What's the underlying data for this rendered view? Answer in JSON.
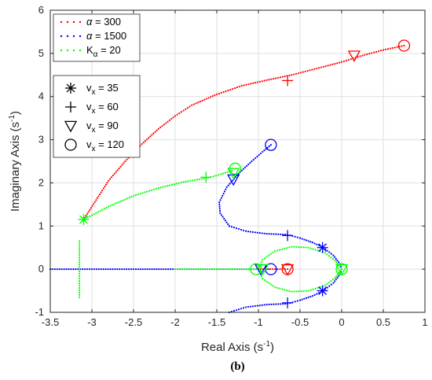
{
  "chart_data": {
    "type": "scatter",
    "xlabel": "Real Axis (s",
    "ylabel": "Imaginary Axis (s",
    "unit_sup": "-1",
    "unit_close": ")",
    "xlim": [
      -3.5,
      1
    ],
    "ylim": [
      -1,
      6
    ],
    "x_ticks": [
      "-3.5",
      "-3",
      "-2.5",
      "-2",
      "-1.5",
      "-1",
      "-0.5",
      "0",
      "0.5",
      "1"
    ],
    "y_ticks": [
      "-1",
      "0",
      "1",
      "2",
      "3",
      "4",
      "5",
      "6"
    ],
    "grid": true,
    "caption": "(b)",
    "colors": {
      "red": "#ff0000",
      "blue": "#0000ff",
      "green": "#00ff00",
      "axis": "#262626",
      "grid": "#dfdfdf"
    },
    "legend_params": [
      {
        "prefix": "α",
        "value": " = 300",
        "color": "#ff0000"
      },
      {
        "prefix": "α",
        "value": " = 1500",
        "color": "#0000ff"
      },
      {
        "prefix": "K",
        "sub": "α",
        "value": " = 20",
        "color": "#00ff00"
      }
    ],
    "legend_markers": [
      {
        "prefix": "v",
        "sub": "x",
        "value": " = 35",
        "marker": "star"
      },
      {
        "prefix": "v",
        "sub": "x",
        "value": " = 60",
        "marker": "plus"
      },
      {
        "prefix": "v",
        "sub": "x",
        "value": " = 90",
        "marker": "triangle"
      },
      {
        "prefix": "v",
        "sub": "x",
        "value": " = 120",
        "marker": "circle"
      }
    ],
    "series": [
      {
        "color": "red",
        "branch": "upper",
        "points": [
          [
            -3.1,
            1.15
          ],
          [
            -2.95,
            1.6
          ],
          [
            -2.8,
            2.05
          ],
          [
            -2.6,
            2.5
          ],
          [
            -2.4,
            2.9
          ],
          [
            -2.2,
            3.25
          ],
          [
            -2.0,
            3.55
          ],
          [
            -1.8,
            3.8
          ],
          [
            -1.5,
            4.05
          ],
          [
            -1.2,
            4.25
          ],
          [
            -0.9,
            4.38
          ],
          [
            -0.6,
            4.5
          ],
          [
            -0.3,
            4.65
          ],
          [
            0.0,
            4.8
          ],
          [
            0.25,
            4.95
          ],
          [
            0.5,
            5.08
          ],
          [
            0.75,
            5.18
          ]
        ]
      },
      {
        "color": "blue",
        "branch": "upper",
        "points": [
          [
            -1.35,
            1.0
          ],
          [
            -1.46,
            1.3
          ],
          [
            -1.47,
            1.55
          ],
          [
            -1.38,
            1.9
          ],
          [
            -1.22,
            2.25
          ],
          [
            -1.08,
            2.5
          ],
          [
            -0.95,
            2.72
          ],
          [
            -0.85,
            2.88
          ]
        ]
      },
      {
        "color": "blue",
        "branch": "mirror",
        "points": [
          [
            -1.35,
            1.0
          ],
          [
            -1.15,
            0.88
          ],
          [
            -0.9,
            0.82
          ],
          [
            -0.65,
            0.8
          ],
          [
            -0.5,
            0.72
          ],
          [
            -0.35,
            0.62
          ],
          [
            -0.22,
            0.5
          ],
          [
            -0.1,
            0.32
          ],
          [
            -0.02,
            0.12
          ],
          [
            0.0,
            0.0
          ]
        ]
      },
      {
        "color": "blue",
        "branch": "real",
        "points": [
          [
            -3.5,
            0.0
          ],
          [
            -3.0,
            0.0
          ],
          [
            -2.5,
            0.0
          ],
          [
            -2.0,
            0.0
          ],
          [
            -1.5,
            0.0
          ],
          [
            -1.2,
            0.0
          ],
          [
            -1.0,
            0.0
          ],
          [
            -0.88,
            0.0
          ]
        ]
      },
      {
        "color": "green",
        "branch": "upper",
        "points": [
          [
            -3.1,
            1.15
          ],
          [
            -2.8,
            1.45
          ],
          [
            -2.5,
            1.7
          ],
          [
            -2.2,
            1.88
          ],
          [
            -1.9,
            2.02
          ],
          [
            -1.6,
            2.12
          ],
          [
            -1.45,
            2.2
          ],
          [
            -1.32,
            2.28
          ]
        ]
      },
      {
        "color": "green",
        "branch": "mirror",
        "points": [
          [
            -1.0,
            0.0
          ],
          [
            -0.95,
            0.22
          ],
          [
            -0.8,
            0.42
          ],
          [
            -0.6,
            0.52
          ],
          [
            -0.4,
            0.5
          ],
          [
            -0.2,
            0.38
          ],
          [
            -0.08,
            0.2
          ],
          [
            0.0,
            0.0
          ]
        ]
      },
      {
        "color": "green",
        "branch": "lower",
        "points": [
          [
            -3.15,
            0.65
          ],
          [
            -3.15,
            -0.65
          ]
        ]
      },
      {
        "color": "green",
        "branch": "real",
        "points": [
          [
            -2.0,
            0.0
          ],
          [
            -1.5,
            0.0
          ],
          [
            -1.2,
            0.0
          ],
          [
            -1.0,
            0.0
          ]
        ]
      },
      {
        "color": "red",
        "branch": "real",
        "points": [
          [
            -1.0,
            0.0
          ],
          [
            -0.8,
            0.0
          ],
          [
            -0.65,
            0.0
          ]
        ]
      }
    ],
    "markers": [
      {
        "color": "red",
        "marker": "plus",
        "x": -0.65,
        "y": 4.37
      },
      {
        "color": "red",
        "marker": "triangle",
        "x": 0.15,
        "y": 4.95
      },
      {
        "color": "red",
        "marker": "circle",
        "x": 0.75,
        "y": 5.18
      },
      {
        "color": "blue",
        "marker": "circle",
        "x": -0.85,
        "y": 2.88
      },
      {
        "color": "blue",
        "marker": "triangle",
        "x": -1.3,
        "y": 2.08
      },
      {
        "color": "blue",
        "marker": "plus",
        "x": -0.65,
        "y": 0.78
      },
      {
        "color": "blue",
        "marker": "plus",
        "x": -0.65,
        "y": -0.78
      },
      {
        "color": "blue",
        "marker": "star",
        "x": -0.23,
        "y": 0.5
      },
      {
        "color": "blue",
        "marker": "star",
        "x": -0.23,
        "y": -0.5
      },
      {
        "color": "blue",
        "marker": "circle",
        "x": -0.85,
        "y": 0.0
      },
      {
        "color": "blue",
        "marker": "triangle",
        "x": -0.97,
        "y": 0.0
      },
      {
        "color": "green",
        "marker": "star",
        "x": -3.1,
        "y": 1.15
      },
      {
        "color": "green",
        "marker": "plus",
        "x": -1.63,
        "y": 2.13
      },
      {
        "color": "green",
        "marker": "triangle",
        "x": -1.3,
        "y": 2.23
      },
      {
        "color": "green",
        "marker": "circle",
        "x": -1.28,
        "y": 2.33
      },
      {
        "color": "green",
        "marker": "circle",
        "x": -1.03,
        "y": 0.0
      },
      {
        "color": "green",
        "marker": "triangle",
        "x": -0.95,
        "y": 0.0
      },
      {
        "color": "green",
        "marker": "circle",
        "x": 0.0,
        "y": 0.0
      },
      {
        "color": "green",
        "marker": "triangle",
        "x": 0.0,
        "y": 0.0
      },
      {
        "color": "red",
        "marker": "circle",
        "x": -0.65,
        "y": 0.0
      },
      {
        "color": "red",
        "marker": "triangle",
        "x": -0.65,
        "y": 0.0
      }
    ]
  }
}
